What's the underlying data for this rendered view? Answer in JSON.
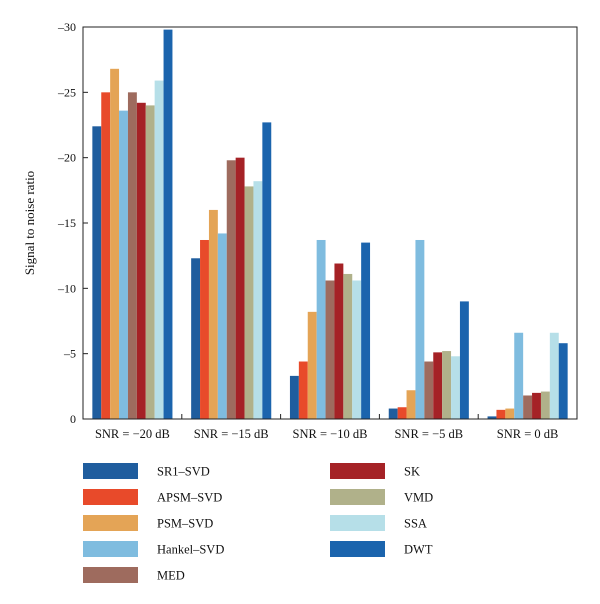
{
  "chart_data": {
    "type": "bar",
    "title": "",
    "xlabel": "",
    "ylabel": "Signal to noise ratio",
    "ylim": [
      0,
      -30
    ],
    "yticks": [
      0,
      -5,
      -10,
      -15,
      -20,
      -25,
      -30
    ],
    "ytick_labels": [
      "0",
      "–5",
      "–10",
      "–15",
      "–20",
      "–25",
      "–30"
    ],
    "grid": false,
    "legend_position": "bottom",
    "categories": [
      "SNR = −20 dB",
      "SNR = −15 dB",
      "SNR = −10 dB",
      "SNR = −5 dB",
      "SNR = 0 dB"
    ],
    "series": [
      {
        "name": "SR1–SVD",
        "color": "#1f5d9e",
        "values": [
          -22.4,
          -12.3,
          -3.3,
          -0.8,
          -0.2
        ]
      },
      {
        "name": "APSM–SVD",
        "color": "#e84a2a",
        "values": [
          -25.0,
          -13.7,
          -4.4,
          -0.9,
          -0.7
        ]
      },
      {
        "name": "PSM–SVD",
        "color": "#e4a456",
        "values": [
          -26.8,
          -16.0,
          -8.2,
          -2.2,
          -0.8
        ]
      },
      {
        "name": "Hankel–SVD",
        "color": "#7fbcdf",
        "values": [
          -23.6,
          -14.2,
          -13.7,
          -13.7,
          -6.6
        ]
      },
      {
        "name": "MED",
        "color": "#9e6b5e",
        "values": [
          -25.0,
          -19.8,
          -10.6,
          -4.4,
          -1.8
        ]
      },
      {
        "name": "SK",
        "color": "#a52226",
        "values": [
          -24.2,
          -20.0,
          -11.9,
          -5.1,
          -2.0
        ]
      },
      {
        "name": "VMD",
        "color": "#b0b18a",
        "values": [
          -24.0,
          -17.8,
          -11.1,
          -5.2,
          -2.1
        ]
      },
      {
        "name": "SSA",
        "color": "#b6dfe8",
        "values": [
          -25.9,
          -18.2,
          -10.6,
          -4.8,
          -6.6
        ]
      },
      {
        "name": "DWT",
        "color": "#1b64ad",
        "values": [
          -29.8,
          -22.7,
          -13.5,
          -9.0,
          -5.8
        ]
      }
    ]
  }
}
